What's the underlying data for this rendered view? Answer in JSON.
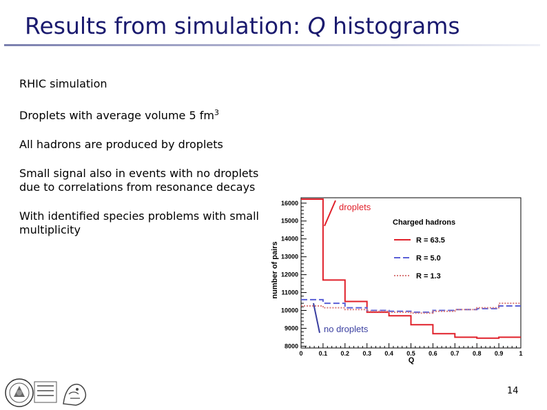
{
  "slide": {
    "title_prefix": "Results from simulation: ",
    "title_q": "Q",
    "title_suffix": " histograms",
    "page_number": "14"
  },
  "bullets": {
    "b1": "RHIC simulation",
    "b2_text": "Droplets with average volume 5 fm",
    "b2_sup": "3",
    "b3": "All hadrons are produced by droplets",
    "b4": "Small signal also in events with no droplets due to correlations from resonance decays",
    "b5": "With identified species problems with small multiplicity"
  },
  "annotations": {
    "droplets": "droplets",
    "no_droplets": "no droplets"
  },
  "chart_data": {
    "type": "line",
    "title": "Charged hadrons",
    "xlabel": "Q",
    "ylabel": "number of pairs",
    "xlim": [
      0,
      1
    ],
    "ylim": [
      7900,
      16300
    ],
    "x_ticks": [
      "0",
      "0.1",
      "0.2",
      "0.3",
      "0.4",
      "0.5",
      "0.6",
      "0.7",
      "0.8",
      "0.9",
      "1"
    ],
    "y_ticks": [
      "8000",
      "9000",
      "10000",
      "11000",
      "12000",
      "13000",
      "14000",
      "15000",
      "16000"
    ],
    "bin_edges": [
      0,
      0.1,
      0.2,
      0.3,
      0.4,
      0.5,
      0.6,
      0.7,
      0.8,
      0.9,
      1.0
    ],
    "series": [
      {
        "name": "R = 63.5",
        "color": "#e0202a",
        "dash": "solid",
        "values": [
          16400,
          11700,
          10500,
          9900,
          9700,
          9200,
          8700,
          8500,
          8450,
          8500
        ]
      },
      {
        "name": "R = 5.0",
        "color": "#5a5fd6",
        "dash": "dashed",
        "values": [
          10600,
          10400,
          10150,
          10000,
          9950,
          9900,
          10000,
          10050,
          10100,
          10250
        ]
      },
      {
        "name": "R = 1.3",
        "color": "#d97a7a",
        "dash": "dotted",
        "values": [
          10250,
          10150,
          10050,
          9950,
          9900,
          9850,
          9950,
          10050,
          10150,
          10400
        ]
      }
    ]
  }
}
